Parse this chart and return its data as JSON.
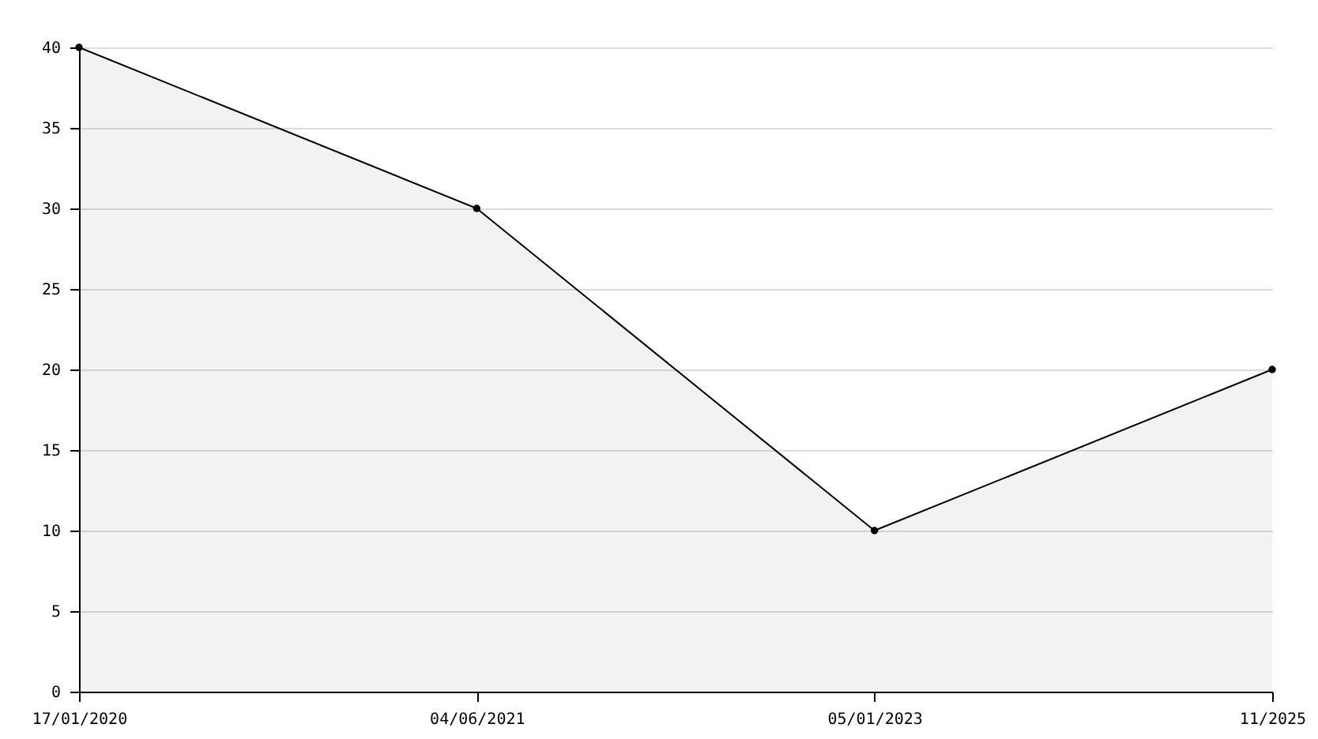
{
  "chart_data": {
    "type": "area",
    "categories": [
      "17/01/2020",
      "04/06/2021",
      "05/01/2023",
      "11/2025"
    ],
    "series": [
      {
        "color": "#000000",
        "values": [
          40,
          30,
          10,
          20
        ]
      }
    ],
    "ylim": [
      0,
      40
    ],
    "yticks": [
      0,
      5,
      10,
      15,
      20,
      25,
      30,
      35,
      40
    ],
    "grid": "y",
    "marker": "circle"
  }
}
